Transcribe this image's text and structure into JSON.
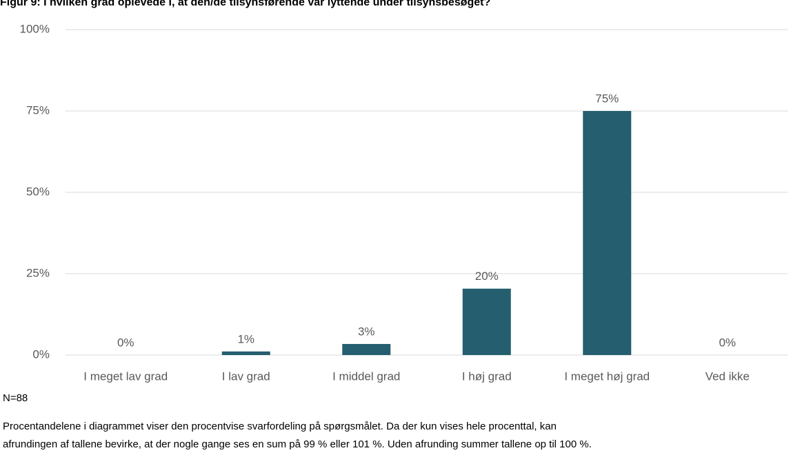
{
  "chart_data": {
    "type": "bar",
    "title": "Figur 9: I hvilken grad oplevede I, at den/de tilsynsførende var lyttende under tilsynsbesøget?",
    "categories": [
      "I meget lav grad",
      "I lav grad",
      "I middel grad",
      "I høj grad",
      "I meget høj grad",
      "Ved ikke"
    ],
    "values": [
      0,
      1.1,
      3.4,
      20.4,
      75,
      0
    ],
    "value_labels": [
      "0%",
      "1%",
      "3%",
      "20%",
      "75%",
      "0%"
    ],
    "color": "#255e6f",
    "ylim": [
      0,
      100
    ],
    "yticks": [
      {
        "value": 0,
        "label": "0%"
      },
      {
        "value": 25,
        "label": "25%"
      },
      {
        "value": 50,
        "label": "50%"
      },
      {
        "value": 75,
        "label": "75%"
      },
      {
        "value": 100,
        "label": "100%"
      }
    ],
    "grid": true,
    "notes": [
      "N=88",
      "Procentandelene i diagrammet viser den procentvise svarfordeling på spørgsmålet. Da der kun vises hele procenttal, kan",
      "afrundingen af tallene bevirke, at der nogle gange ses en sum på 99 % eller 101 %. Uden afrunding summer tallene op til 100 %."
    ]
  }
}
